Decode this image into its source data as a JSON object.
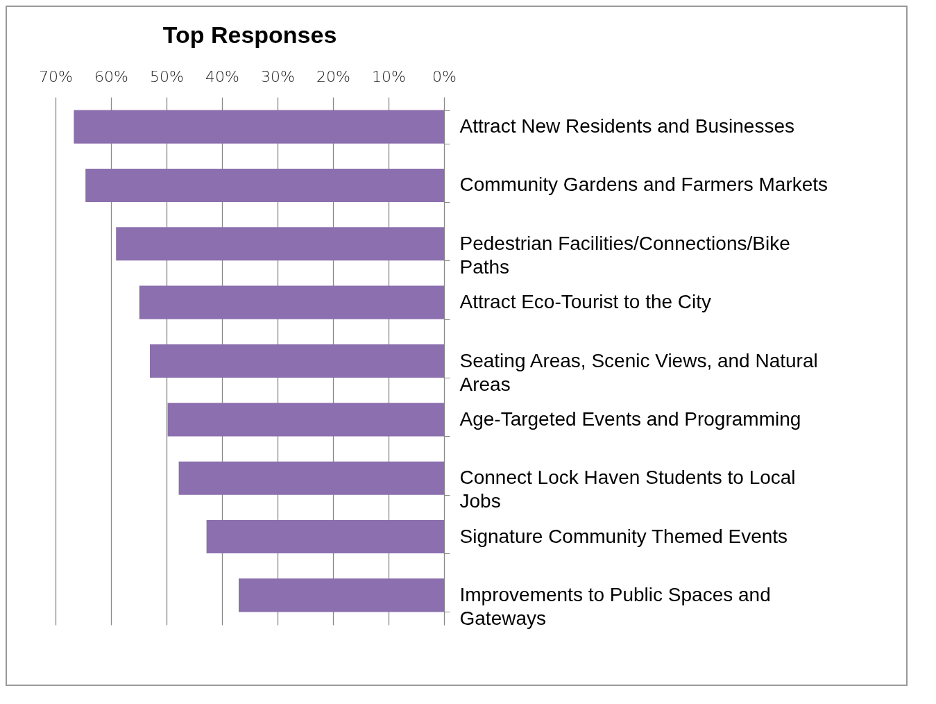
{
  "chart_data": {
    "type": "bar",
    "orientation": "horizontal",
    "title": "Top Responses",
    "categories": [
      "Attract New Residents and Businesses",
      "Community Gardens and Farmers Markets",
      "Pedestrian Facilities/Connections/Bike Paths",
      "Attract Eco-Tourist to the City",
      "Seating Areas, Scenic Views, and Natural Areas",
      "Age-Targeted Events and Programming",
      "Connect Lock Haven Students to Local Jobs",
      "Signature Community Themed Events",
      "Improvements to Public Spaces and Gateways"
    ],
    "values": [
      66.7,
      64.6,
      59.1,
      54.9,
      53.0,
      49.8,
      47.8,
      42.8,
      37.0
    ],
    "color": "#8b6fae",
    "xlim": [
      70,
      0
    ],
    "xticks": [
      {
        "value": 70,
        "label": "70%"
      },
      {
        "value": 60,
        "label": "60%"
      },
      {
        "value": 50,
        "label": "50%"
      },
      {
        "value": 40,
        "label": "40%"
      },
      {
        "value": 30,
        "label": "30%"
      },
      {
        "value": 20,
        "label": "20%"
      },
      {
        "value": 10,
        "label": "10%"
      },
      {
        "value": 0,
        "label": "0%"
      }
    ],
    "grid": "x"
  }
}
